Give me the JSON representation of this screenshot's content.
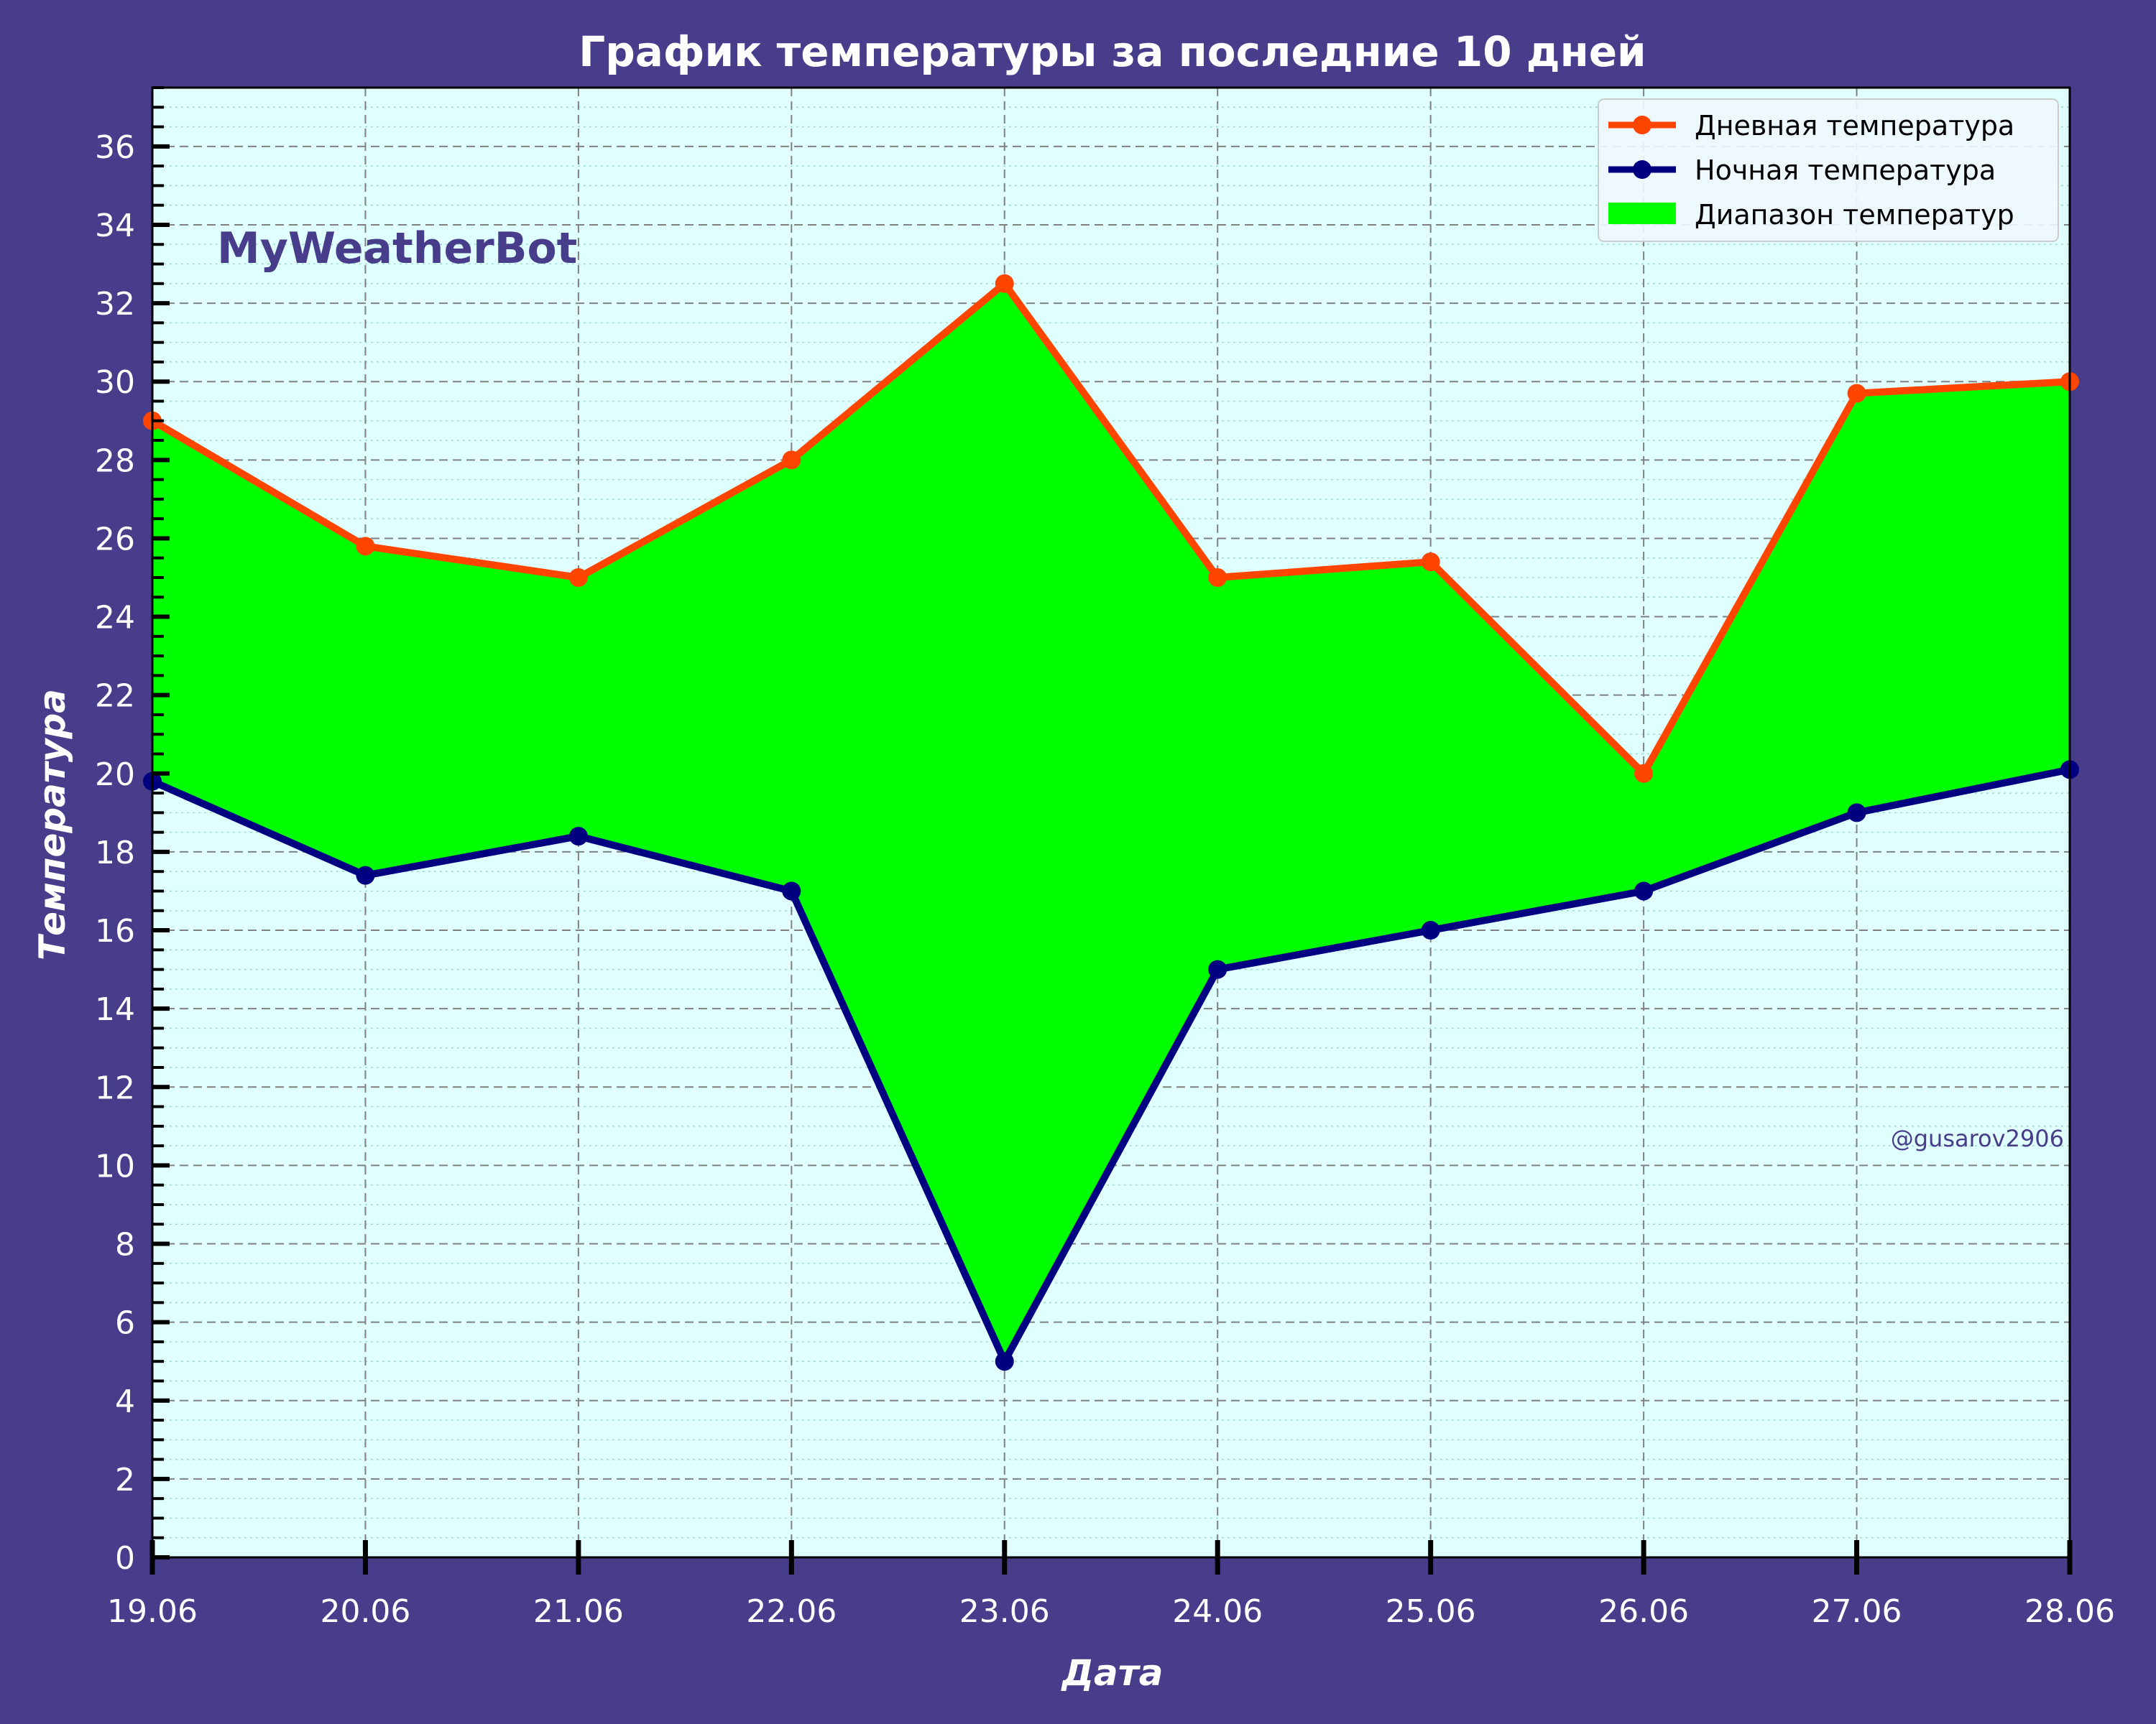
{
  "colors": {
    "background": "#483D8B",
    "plot_background": "#E0FFFF",
    "day_line": "#FF4500",
    "night_line": "#000080",
    "range_fill": "#00FF00",
    "text": "#FFFFFF",
    "watermark": "#483D8B"
  },
  "watermark": {
    "brand": "MyWeatherBot",
    "credit": "@gusarov2906"
  },
  "chart_data": {
    "type": "line",
    "title": "График температуры за последние 10 дней",
    "xlabel": "Дата",
    "ylabel": "Температура",
    "categories": [
      "19.06",
      "20.06",
      "21.06",
      "22.06",
      "23.06",
      "24.06",
      "25.06",
      "26.06",
      "27.06",
      "28.06"
    ],
    "series": [
      {
        "name": "Дневная температура",
        "values": [
          29.0,
          25.8,
          25.0,
          28.0,
          32.5,
          25.0,
          25.4,
          20.0,
          29.7,
          30.0
        ]
      },
      {
        "name": "Ночная температура",
        "values": [
          19.8,
          17.4,
          18.4,
          17.0,
          5.0,
          15.0,
          16.0,
          17.0,
          19.0,
          20.1
        ]
      }
    ],
    "fill_between": {
      "name": "Диапазон температур"
    },
    "ylim": [
      0,
      37.5
    ],
    "yticks": [
      0,
      2,
      4,
      6,
      8,
      10,
      12,
      14,
      16,
      18,
      20,
      22,
      24,
      26,
      28,
      30,
      32,
      34,
      36
    ],
    "grid": true,
    "legend_position": "top-right"
  }
}
